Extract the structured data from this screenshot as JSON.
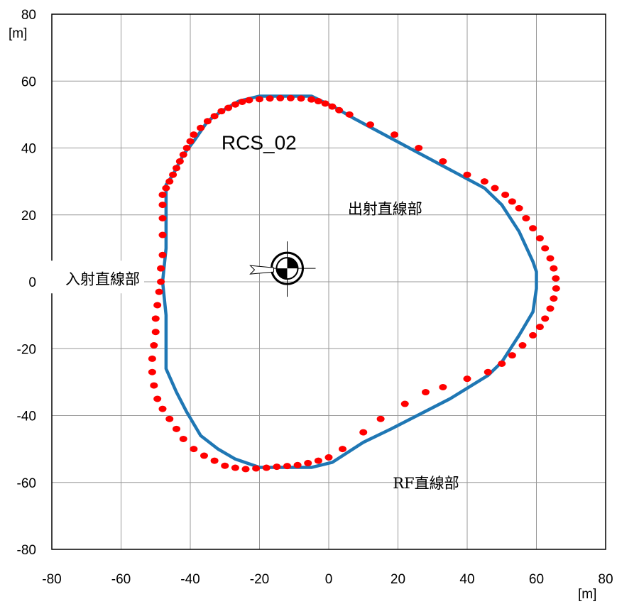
{
  "chart_data": {
    "type": "scatter",
    "title": "",
    "xlabel": "",
    "ylabel": "",
    "x_unit": "[m]",
    "y_unit": "[m]",
    "xlim": [
      -80,
      80
    ],
    "ylim": [
      -80,
      80
    ],
    "xticks": [
      -80,
      -60,
      -40,
      -20,
      0,
      20,
      40,
      60,
      80
    ],
    "yticks": [
      -80,
      -60,
      -40,
      -20,
      0,
      20,
      40,
      60,
      80
    ],
    "xtick_labels": [
      "-80",
      "-60",
      "-40",
      "-20",
      "0",
      "20",
      "40",
      "60",
      "80"
    ],
    "ytick_labels": [
      "-80",
      "-60",
      "-40",
      "-20",
      "0",
      "20",
      "40",
      "60",
      "80"
    ],
    "grid": true,
    "colors": {
      "line": "#1f77b4",
      "points": "#ff0000",
      "grid": "#999999"
    },
    "series": [
      {
        "kind": "line",
        "points": [
          [
            -47,
            26
          ],
          [
            -47,
            29
          ],
          [
            -45,
            32
          ],
          [
            -42,
            38
          ],
          [
            -39,
            42
          ],
          [
            -35,
            48
          ],
          [
            -31,
            51
          ],
          [
            -26,
            54
          ],
          [
            -20,
            55.5
          ],
          [
            -5,
            55.5
          ],
          [
            -2,
            54
          ],
          [
            2,
            52
          ],
          [
            7,
            49
          ],
          [
            45,
            28
          ],
          [
            50,
            23
          ],
          [
            55,
            15
          ],
          [
            59,
            6
          ],
          [
            60,
            3
          ],
          [
            60,
            -2
          ],
          [
            59,
            -9
          ],
          [
            55,
            -16
          ],
          [
            50,
            -24
          ],
          [
            46,
            -28
          ],
          [
            35,
            -35
          ],
          [
            18,
            -44
          ],
          [
            10,
            -48
          ],
          [
            1,
            -54
          ],
          [
            -5,
            -55.5
          ],
          [
            -20,
            -55.5
          ],
          [
            -27,
            -53
          ],
          [
            -32,
            -50
          ],
          [
            -37,
            -46
          ],
          [
            -41,
            -39
          ],
          [
            -44,
            -33
          ],
          [
            -47,
            -26
          ],
          [
            -47,
            -10
          ],
          [
            -48,
            0
          ],
          [
            -47,
            10
          ],
          [
            -47,
            26
          ]
        ]
      },
      {
        "kind": "scatter",
        "points": [
          [
            -48,
            23
          ],
          [
            -48,
            26
          ],
          [
            -47,
            28
          ],
          [
            -46,
            30
          ],
          [
            -45,
            32
          ],
          [
            -44,
            34
          ],
          [
            -43,
            36
          ],
          [
            -42,
            38
          ],
          [
            -41,
            40
          ],
          [
            -40,
            42
          ],
          [
            -39,
            44
          ],
          [
            -37,
            46
          ],
          [
            -35,
            48
          ],
          [
            -33,
            49.5
          ],
          [
            -31,
            51
          ],
          [
            -29,
            52
          ],
          [
            -27,
            53
          ],
          [
            -25,
            53.8
          ],
          [
            -23,
            54.3
          ],
          [
            -20,
            54.6
          ],
          [
            -17,
            54.8
          ],
          [
            -14,
            54.9
          ],
          [
            -11,
            54.9
          ],
          [
            -8,
            54.8
          ],
          [
            -5,
            54.5
          ],
          [
            -3,
            54
          ],
          [
            -1,
            53.3
          ],
          [
            1,
            52.4
          ],
          [
            3,
            51.3
          ],
          [
            6,
            50
          ],
          [
            12,
            47
          ],
          [
            19,
            44
          ],
          [
            26,
            40
          ],
          [
            33,
            36
          ],
          [
            40,
            32
          ],
          [
            45,
            30
          ],
          [
            48,
            28
          ],
          [
            51,
            26
          ],
          [
            53,
            24
          ],
          [
            55,
            22
          ],
          [
            57,
            19
          ],
          [
            59,
            16
          ],
          [
            61,
            13
          ],
          [
            62.5,
            10
          ],
          [
            64,
            7
          ],
          [
            65,
            4
          ],
          [
            65.6,
            1
          ],
          [
            65.7,
            -2
          ],
          [
            65,
            -5
          ],
          [
            64,
            -8
          ],
          [
            62.5,
            -11
          ],
          [
            61,
            -13.5
          ],
          [
            59,
            -16
          ],
          [
            56,
            -19
          ],
          [
            53,
            -22
          ],
          [
            50,
            -24.5
          ],
          [
            46,
            -27
          ],
          [
            40,
            -29
          ],
          [
            33,
            -31.5
          ],
          [
            28,
            -33
          ],
          [
            22,
            -36.5
          ],
          [
            15,
            -41
          ],
          [
            10,
            -45
          ],
          [
            4,
            -50
          ],
          [
            0,
            -52.5
          ],
          [
            -3,
            -53.5
          ],
          [
            -6,
            -54.2
          ],
          [
            -9,
            -54.8
          ],
          [
            -12,
            -55.1
          ],
          [
            -15,
            -55.3
          ],
          [
            -18,
            -55.6
          ],
          [
            -21,
            -55.8
          ],
          [
            -24,
            -56
          ],
          [
            -27,
            -55.6
          ],
          [
            -30,
            -55
          ],
          [
            -33,
            -53.5
          ],
          [
            -36,
            -52
          ],
          [
            -39,
            -50
          ],
          [
            -42,
            -47
          ],
          [
            -44,
            -44
          ],
          [
            -46,
            -41
          ],
          [
            -48,
            -38
          ],
          [
            -49.5,
            -35
          ],
          [
            -50.5,
            -31
          ],
          [
            -51,
            -27
          ],
          [
            -51,
            -23
          ],
          [
            -50.5,
            -19
          ],
          [
            -50,
            -15
          ],
          [
            -50,
            -11
          ],
          [
            -49.5,
            -7
          ],
          [
            -49,
            -3
          ],
          [
            -48.5,
            0
          ],
          [
            -48.5,
            4
          ],
          [
            -48,
            8
          ],
          [
            -48,
            14
          ],
          [
            -48,
            19
          ]
        ]
      }
    ],
    "annotations": [
      {
        "text": "RCS_02"
      },
      {
        "text": "出射直線部"
      },
      {
        "text": "入射直線部"
      },
      {
        "text": "RF直線部"
      }
    ]
  }
}
